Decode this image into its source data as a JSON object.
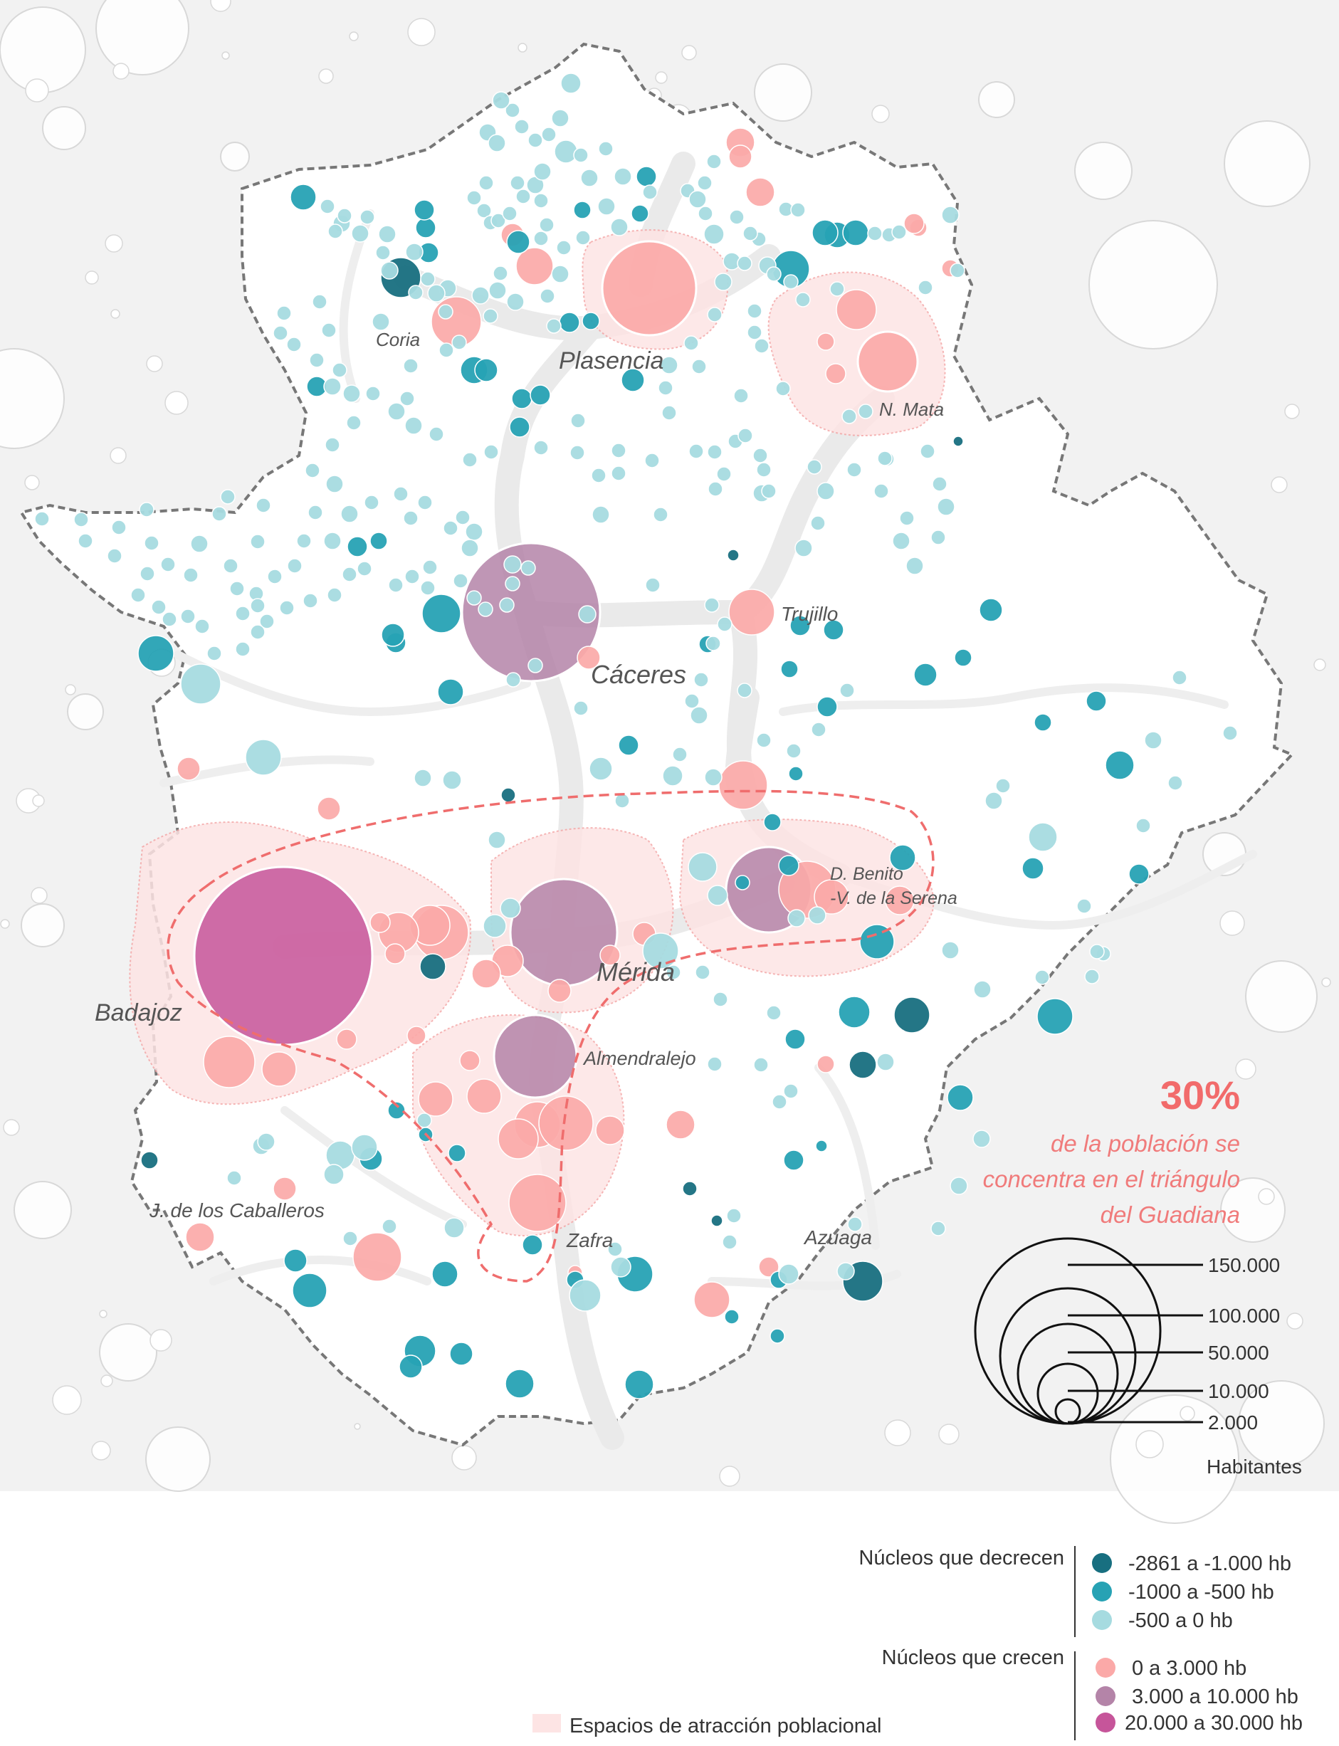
{
  "colors": {
    "decrease_strong": "#186f80",
    "decrease_mid": "#27a2b4",
    "decrease_light": "#a6dbe0",
    "grow_small": "#fba9a8",
    "grow_mid": "#b484a8",
    "grow_large": "#c6559a",
    "attraction_space": "#fde4e4",
    "triangle_outline": "#ef6d6d"
  },
  "cities": [
    {
      "key": "coria",
      "label": "Coria"
    },
    {
      "key": "plasencia",
      "label": "Plasencia"
    },
    {
      "key": "nmata",
      "label": "N. Mata"
    },
    {
      "key": "trujillo",
      "label": "Trujillo"
    },
    {
      "key": "caceres",
      "label": "Cáceres"
    },
    {
      "key": "dbenito1",
      "label": "D. Benito"
    },
    {
      "key": "dbenito2",
      "label": "-V. de la Serena"
    },
    {
      "key": "merida",
      "label": "Mérida"
    },
    {
      "key": "badajoz",
      "label": "Badajoz"
    },
    {
      "key": "almendralejo",
      "label": "Almendralejo"
    },
    {
      "key": "jerez",
      "label": "J. de los Caballeros"
    },
    {
      "key": "zafra",
      "label": "Zafra"
    },
    {
      "key": "azuaga",
      "label": "Azuaga"
    }
  ],
  "callout": {
    "percent": "30%",
    "lines": [
      "de la población se",
      "concentra en el triángulo",
      "del Guadiana"
    ]
  },
  "size_scale": {
    "values": [
      "150.000",
      "100.000",
      "50.000",
      "10.000",
      "2.000"
    ],
    "unit": "Habitantes"
  },
  "legend": {
    "decrease_title": "Núcleos que decrecen",
    "decrease_items": [
      "-2861 a -1.000 hb",
      "-1000 a -500 hb",
      "-500 a 0 hb"
    ],
    "grow_title": "Núcleos que crecen",
    "grow_items": [
      "0 a 3.000 hb",
      "3.000 a 10.000 hb",
      "20.000 a 30.000 hb"
    ],
    "attraction_label": "Espacios de atracción poblacional"
  }
}
